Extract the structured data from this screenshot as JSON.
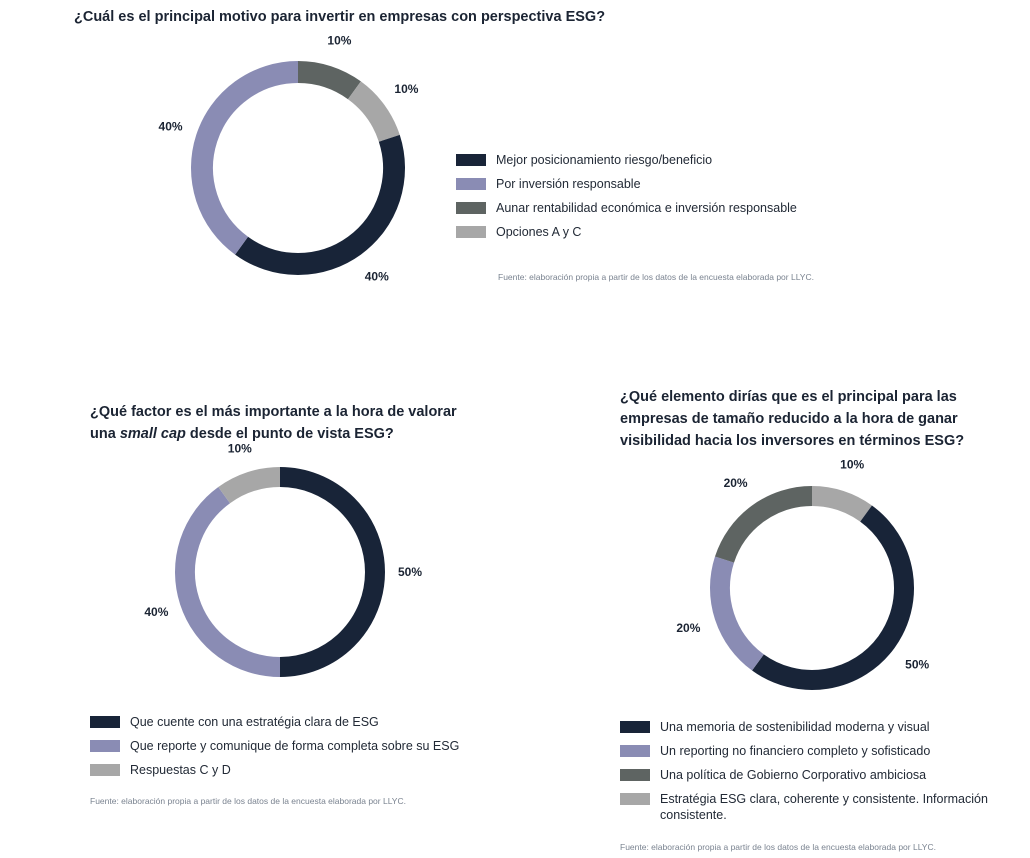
{
  "colors": {
    "navy": "#182438",
    "lavender": "#8a8cb4",
    "dark_gray": "#5e6462",
    "light_gray": "#a7a7a7"
  },
  "chart_data": [
    {
      "type": "pie",
      "title": "¿Cuál es el principal motivo para invertir en empresas con perspectiva ESG?",
      "categories": [
        "Mejor posicionamiento riesgo/beneficio",
        "Por inversión responsable",
        "Aunar rentabilidad económica e inversión responsable",
        "Opciones A y C"
      ],
      "values": [
        40,
        40,
        10,
        10
      ],
      "labels": [
        "40%",
        "40%",
        "10%",
        "10%"
      ],
      "series_colors": [
        "navy",
        "lavender",
        "dark_gray",
        "light_gray"
      ],
      "start_category": 2,
      "source": "Fuente: elaboración propia a partir de los datos de la encuesta elaborada por LLYC."
    },
    {
      "type": "pie",
      "title_part1": "¿Qué factor es el más importante a la hora de valorar una ",
      "title_emphasis": "small cap",
      "title_part2": " desde el punto de vista ESG?",
      "categories": [
        "Que cuente con una estratégia clara de ESG",
        "Que reporte y comunique de forma completa sobre su ESG",
        "Respuestas C y D"
      ],
      "values": [
        50,
        40,
        10
      ],
      "labels": [
        "50%",
        "40%",
        "10%"
      ],
      "series_colors": [
        "navy",
        "lavender",
        "light_gray"
      ],
      "start_category": 0,
      "source": "Fuente: elaboración propia a partir de los datos de la encuesta elaborada por LLYC."
    },
    {
      "type": "pie",
      "title": "¿Qué elemento dirías que es el principal para las empresas de tamaño reducido a la hora de ganar visibilidad hacia los inversores en términos ESG?",
      "categories": [
        "Una memoria de sostenibilidad moderna y visual",
        "Un reporting no financiero completo y sofisticado",
        "Una política de Gobierno Corporativo ambiciosa",
        "Estratégia ESG clara, coherente y consistente. Información consistente."
      ],
      "values": [
        50,
        20,
        20,
        10
      ],
      "labels": [
        "50%",
        "20%",
        "20%",
        "10%"
      ],
      "series_colors": [
        "navy",
        "lavender",
        "dark_gray",
        "light_gray"
      ],
      "start_category": 3,
      "source": "Fuente: elaboración propia a partir de los datos de la encuesta elaborada por LLYC."
    }
  ]
}
